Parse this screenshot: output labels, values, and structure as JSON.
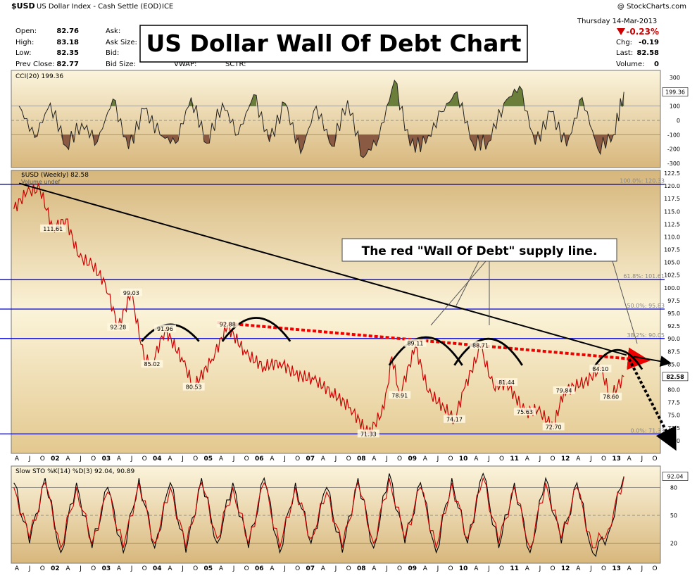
{
  "header": {
    "symbol": "$USD",
    "description": "US Dollar Index - Cash Settle (EOD)",
    "exchange": "ICE",
    "credit": "@ StockCharts.com",
    "date_line": "Thursday  14-Mar-2013",
    "change_pct": "-0.23%",
    "open_label": "Open:",
    "open_value": "82.76",
    "high_label": "High:",
    "high_value": "83.18",
    "low_label": "Low:",
    "low_value": "82.35",
    "prev_label": "Prev Close:",
    "prev_value": "82.77",
    "ask_label": "Ask:",
    "ask_size_label": "Ask Size:",
    "bid_label": "Bid:",
    "bid_size_label": "Bid Size:",
    "vwap_label": "VWAP:",
    "sctr_label": "SCTR:",
    "chg_label": "Chg:",
    "chg_value": "-0.19",
    "last_label": "Last:",
    "last_value": "82.58",
    "volume_label": "Volume:",
    "volume_value": "0"
  },
  "title_box": "US Dollar Wall Of Debt Chart",
  "callout": "The red \"Wall Of Debt\" supply line.",
  "colors": {
    "panel_bg": "#f2e3b3",
    "panel_bg_dark": "#d9b97e",
    "price_line": "#cc0000",
    "trend_line": "#000000",
    "fib_line": "#0000cc",
    "cci_pos_fill": "#6b7f3a",
    "cci_neg_fill": "#8a5a42"
  },
  "chart_data": [
    {
      "type": "area",
      "title": "CCI(20) 199.36",
      "ylim": [
        -320,
        330
      ],
      "y_ticks": [
        "300",
        "200",
        "100",
        "0",
        "-100",
        "-200",
        "-300"
      ],
      "last_value_label": "199.36",
      "x": [
        2001.6,
        2001.9,
        2002.2,
        2002.5,
        2002.8,
        2003.1,
        2003.4,
        2003.7,
        2004.0,
        2004.3,
        2004.6,
        2004.9,
        2005.2,
        2005.5,
        2005.8,
        2006.1,
        2006.4,
        2006.7,
        2007.0,
        2007.3,
        2007.6,
        2007.9,
        2008.2,
        2008.5,
        2008.8,
        2009.1,
        2009.4,
        2009.7,
        2010.0,
        2010.3,
        2010.6,
        2010.9,
        2011.2,
        2011.5,
        2011.8,
        2012.1,
        2012.4,
        2012.7,
        2013.0,
        2013.2
      ],
      "values": [
        100,
        -120,
        120,
        -180,
        -20,
        -150,
        150,
        -200,
        80,
        -100,
        -160,
        160,
        -160,
        120,
        -100,
        180,
        -150,
        120,
        -230,
        100,
        -180,
        140,
        -260,
        -120,
        280,
        -180,
        -160,
        60,
        200,
        -160,
        -150,
        120,
        240,
        -170,
        60,
        -180,
        160,
        -200,
        -100,
        199
      ]
    },
    {
      "type": "line",
      "title": "$USD (Weekly) 82.58",
      "legend_extra": "Volume undef",
      "ylim": [
        67.5,
        122.5
      ],
      "y_ticks": [
        "122.5",
        "120.0",
        "117.5",
        "115.0",
        "112.5",
        "110.0",
        "107.5",
        "105.0",
        "102.5",
        "100.0",
        "97.5",
        "95.0",
        "92.5",
        "90.0",
        "87.5",
        "85.0",
        "82.5",
        "80.0",
        "77.5",
        "75.0",
        "72.5",
        "70.0"
      ],
      "x_ticks": [
        "A",
        "J",
        "O",
        "02",
        "A",
        "J",
        "O",
        "03",
        "A",
        "J",
        "O",
        "04",
        "A",
        "J",
        "O",
        "05",
        "A",
        "J",
        "O",
        "06",
        "A",
        "J",
        "O",
        "07",
        "A",
        "J",
        "O",
        "08",
        "A",
        "J",
        "O",
        "09",
        "A",
        "J",
        "O",
        "10",
        "A",
        "J",
        "O",
        "11",
        "A",
        "J",
        "O",
        "12",
        "A",
        "J",
        "O",
        "13",
        "A",
        "J",
        "O"
      ],
      "x": [
        2001.5,
        2001.75,
        2002.0,
        2002.25,
        2002.5,
        2002.75,
        2003.0,
        2003.25,
        2003.5,
        2003.75,
        2004.0,
        2004.15,
        2004.4,
        2004.75,
        2004.95,
        2005.3,
        2005.6,
        2005.95,
        2006.3,
        2006.6,
        2006.9,
        2007.25,
        2007.6,
        2007.95,
        2008.3,
        2008.6,
        2008.75,
        2008.9,
        2009.2,
        2009.45,
        2009.75,
        2009.95,
        2010.15,
        2010.45,
        2010.7,
        2010.95,
        2011.3,
        2011.55,
        2011.85,
        2012.05,
        2012.45,
        2012.75,
        2012.95,
        2013.2
      ],
      "values": [
        115.5,
        118.8,
        119.4,
        111.6,
        113.5,
        106.0,
        104.5,
        101.0,
        92.3,
        99.0,
        86.0,
        85.0,
        91.9,
        85.5,
        80.5,
        86.0,
        92.5,
        87.0,
        84.5,
        85.5,
        83.0,
        82.0,
        79.5,
        76.5,
        71.3,
        76.2,
        86.5,
        78.9,
        88.5,
        79.5,
        76.5,
        74.2,
        80.5,
        88.3,
        80.5,
        81.4,
        75.6,
        76.0,
        72.7,
        79.8,
        81.5,
        84.1,
        78.6,
        82.58
      ],
      "last_value_label": "82.58",
      "fib_labels": [
        "100.0%: 120.33",
        "61.8%: 101.61",
        "50.0%: 95.83",
        "38.2%: 90.05",
        "0.0%: 71.33"
      ],
      "fib_levels": [
        120.33,
        101.61,
        95.83,
        90.05,
        71.33
      ],
      "annotations": [
        {
          "label": "111.61",
          "x": 2002.25,
          "y": 111.61
        },
        {
          "label": "99.03",
          "x": 2003.75,
          "y": 99.03
        },
        {
          "label": "92.28",
          "x": 2003.5,
          "y": 92.28
        },
        {
          "label": "91.96",
          "x": 2004.4,
          "y": 91.96
        },
        {
          "label": "85.02",
          "x": 2004.15,
          "y": 85.02
        },
        {
          "label": "80.53",
          "x": 2004.95,
          "y": 80.53
        },
        {
          "label": "92.88",
          "x": 2005.6,
          "y": 92.88
        },
        {
          "label": "71.33",
          "x": 2008.3,
          "y": 71.33
        },
        {
          "label": "78.91",
          "x": 2008.9,
          "y": 78.91
        },
        {
          "label": "89.11",
          "x": 2009.2,
          "y": 89.11
        },
        {
          "label": "74.17",
          "x": 2009.95,
          "y": 74.17
        },
        {
          "label": "88.71",
          "x": 2010.45,
          "y": 88.71
        },
        {
          "label": "81.44",
          "x": 2010.95,
          "y": 81.44
        },
        {
          "label": "75.63",
          "x": 2011.3,
          "y": 75.63
        },
        {
          "label": "72.70",
          "x": 2011.85,
          "y": 72.7
        },
        {
          "label": "79.84",
          "x": 2012.05,
          "y": 79.84
        },
        {
          "label": "84.10",
          "x": 2012.75,
          "y": 84.1
        },
        {
          "label": "78.60",
          "x": 2012.95,
          "y": 78.6
        }
      ],
      "trend_line": {
        "x": [
          2001.6,
          2013.25
        ],
        "y": [
          120.5,
          86.8
        ]
      },
      "wall_of_debt_line": {
        "x": [
          2005.4,
          2013.3
        ],
        "y": [
          93.2,
          85.8
        ]
      }
    },
    {
      "type": "line",
      "title": "Slow STO %K(14) %D(3) 92.04, 90.89",
      "ylim": [
        0,
        100
      ],
      "y_ticks": [
        "80",
        "50",
        "20"
      ],
      "last_value_label": "92.04",
      "x_ticks": [
        "A",
        "J",
        "O",
        "02",
        "A",
        "J",
        "O",
        "03",
        "A",
        "J",
        "O",
        "04",
        "A",
        "J",
        "O",
        "05",
        "A",
        "J",
        "O",
        "06",
        "A",
        "J",
        "O",
        "07",
        "A",
        "J",
        "O",
        "08",
        "A",
        "J",
        "O",
        "09",
        "A",
        "J",
        "O",
        "10",
        "A",
        "J",
        "O",
        "11",
        "A",
        "J",
        "O",
        "12",
        "A",
        "J",
        "O",
        "13",
        "A",
        "J",
        "O"
      ],
      "x": [
        2001.5,
        2001.8,
        2002.1,
        2002.4,
        2002.7,
        2003.0,
        2003.3,
        2003.6,
        2003.9,
        2004.2,
        2004.5,
        2004.8,
        2005.1,
        2005.4,
        2005.7,
        2006.0,
        2006.3,
        2006.6,
        2006.9,
        2007.2,
        2007.5,
        2007.8,
        2008.1,
        2008.4,
        2008.7,
        2009.0,
        2009.3,
        2009.6,
        2009.9,
        2010.2,
        2010.5,
        2010.8,
        2011.1,
        2011.4,
        2011.7,
        2012.0,
        2012.3,
        2012.6,
        2012.9,
        2013.2
      ],
      "series": [
        {
          "name": "%K",
          "values": [
            85,
            20,
            90,
            10,
            85,
            15,
            80,
            10,
            90,
            15,
            85,
            10,
            90,
            20,
            85,
            15,
            90,
            10,
            85,
            20,
            80,
            10,
            90,
            15,
            95,
            20,
            85,
            10,
            90,
            20,
            95,
            15,
            85,
            10,
            90,
            20,
            85,
            10,
            30,
            92
          ]
        },
        {
          "name": "%D",
          "values": [
            80,
            25,
            85,
            15,
            80,
            20,
            75,
            15,
            85,
            20,
            80,
            15,
            85,
            25,
            80,
            20,
            85,
            15,
            80,
            25,
            75,
            15,
            85,
            20,
            90,
            25,
            80,
            15,
            85,
            25,
            90,
            20,
            80,
            15,
            85,
            25,
            80,
            15,
            35,
            91
          ]
        }
      ]
    }
  ]
}
